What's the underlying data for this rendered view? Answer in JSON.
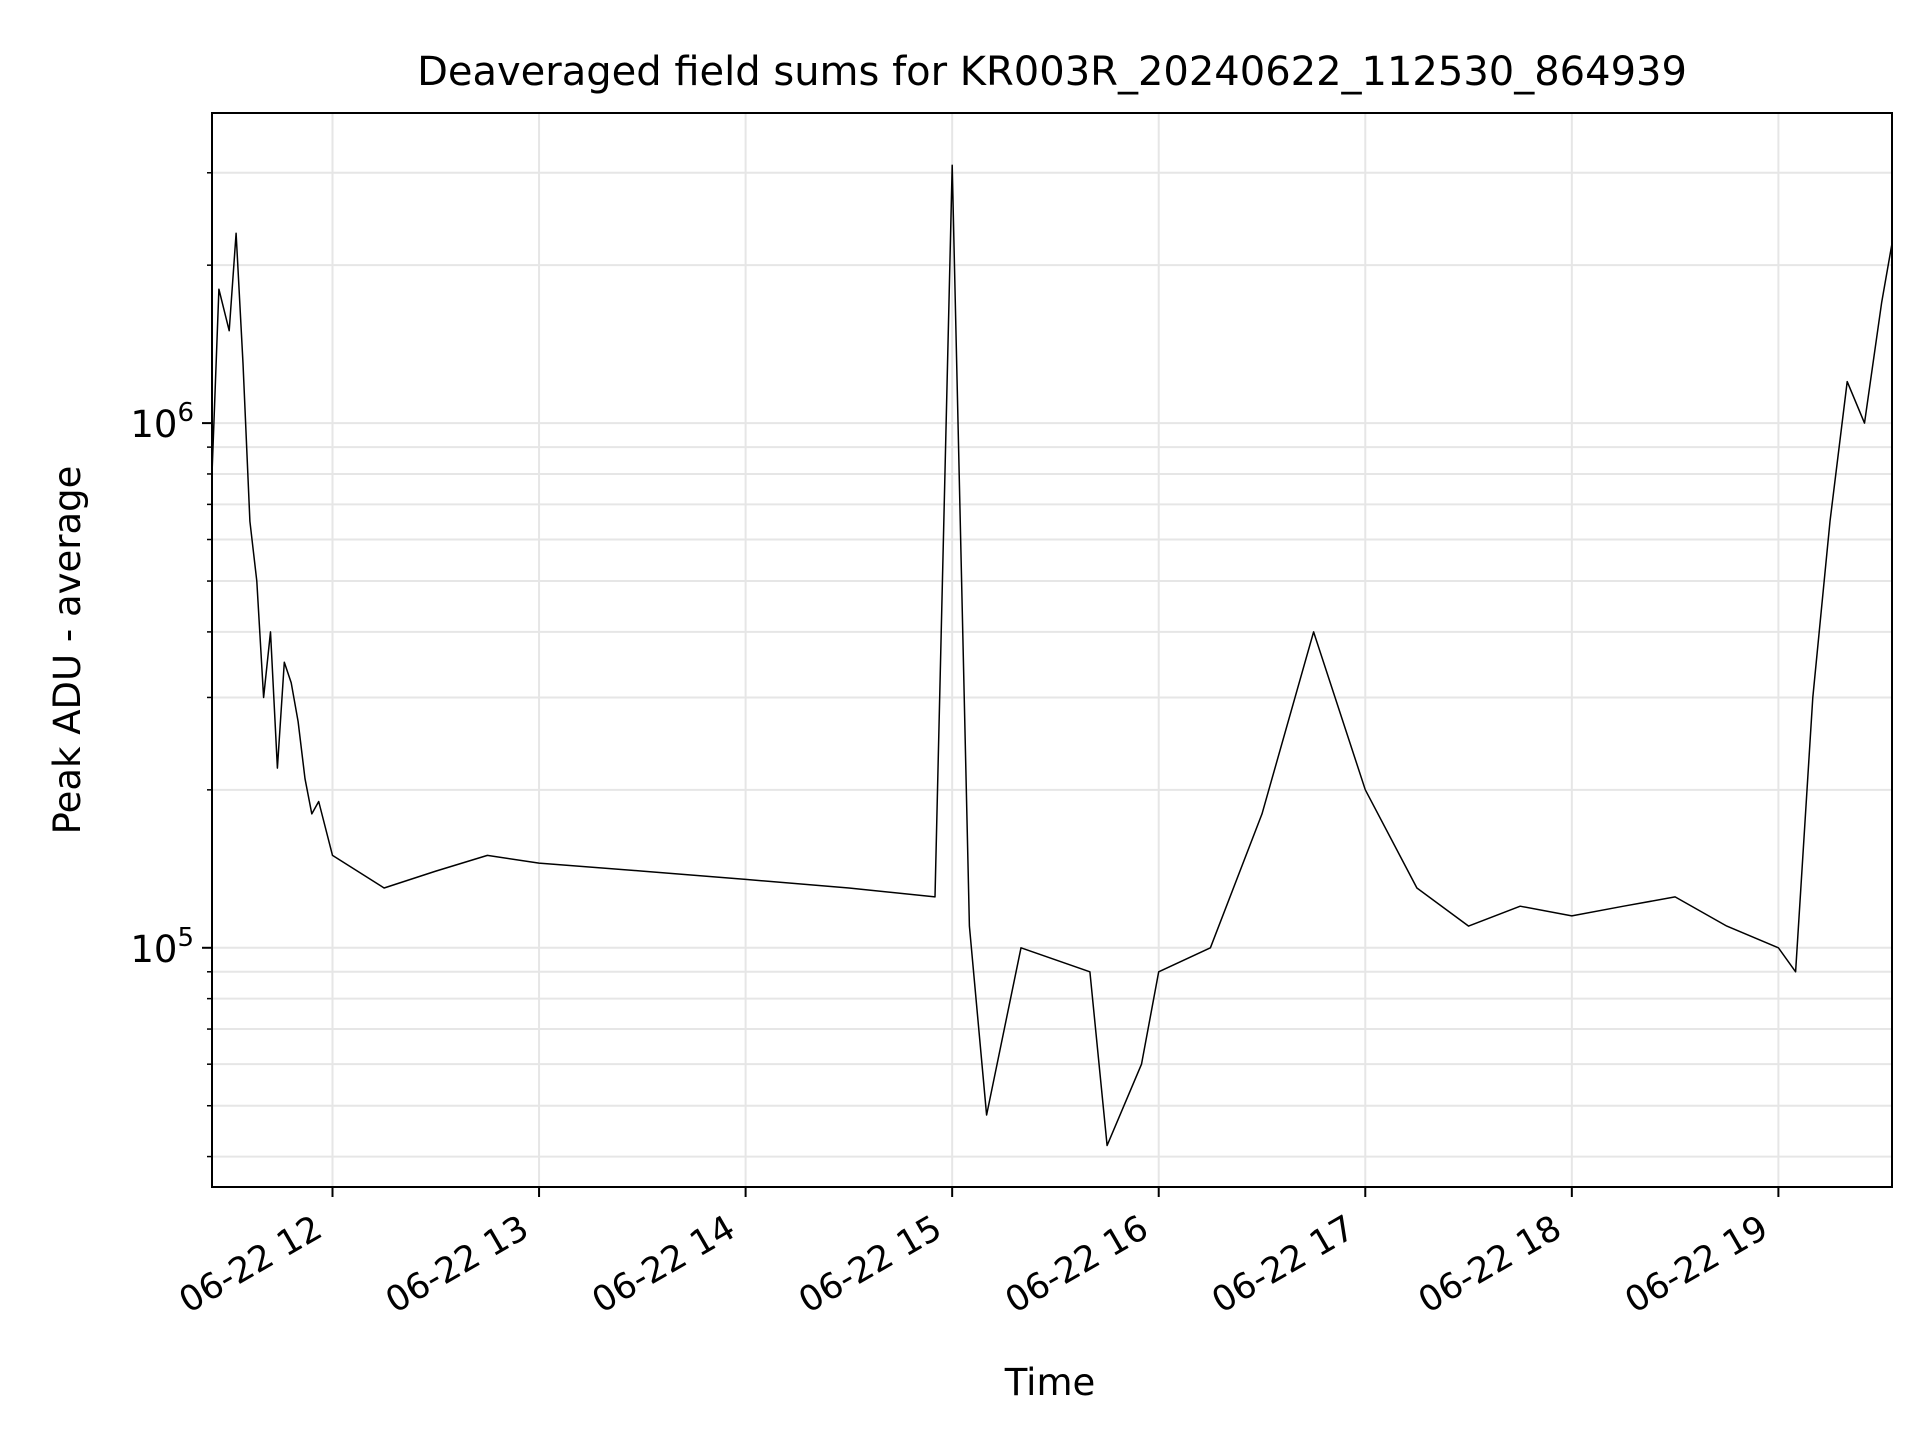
{
  "chart_data": {
    "type": "line",
    "title": "Deaveraged field sums for KR003R_20240622_112530_864939",
    "xlabel": "Time",
    "ylabel": "Peak ADU - average",
    "yscale": "log",
    "xlim": [
      "2024-06-22 11:25",
      "2024-06-22 19:33"
    ],
    "ylim": [
      35000,
      3900000
    ],
    "grid": true,
    "line_color": "#000000",
    "x_ticks": [
      {
        "label": "06-22 12",
        "value": "2024-06-22 12:00"
      },
      {
        "label": "06-22 13",
        "value": "2024-06-22 13:00"
      },
      {
        "label": "06-22 14",
        "value": "2024-06-22 14:00"
      },
      {
        "label": "06-22 15",
        "value": "2024-06-22 15:00"
      },
      {
        "label": "06-22 16",
        "value": "2024-06-22 16:00"
      },
      {
        "label": "06-22 17",
        "value": "2024-06-22 17:00"
      },
      {
        "label": "06-22 18",
        "value": "2024-06-22 18:00"
      },
      {
        "label": "06-22 19",
        "value": "2024-06-22 19:00"
      }
    ],
    "y_ticks": [
      {
        "base": "10",
        "exp": "5",
        "value": 100000
      },
      {
        "base": "10",
        "exp": "6",
        "value": 1000000
      }
    ],
    "series": [
      {
        "points": [
          [
            "2024-06-22 11:25",
            800000
          ],
          [
            "2024-06-22 11:27",
            1800000
          ],
          [
            "2024-06-22 11:30",
            1500000
          ],
          [
            "2024-06-22 11:32",
            2300000
          ],
          [
            "2024-06-22 11:34",
            1300000
          ],
          [
            "2024-06-22 11:36",
            650000
          ],
          [
            "2024-06-22 11:38",
            500000
          ],
          [
            "2024-06-22 11:40",
            300000
          ],
          [
            "2024-06-22 11:42",
            400000
          ],
          [
            "2024-06-22 11:44",
            220000
          ],
          [
            "2024-06-22 11:46",
            350000
          ],
          [
            "2024-06-22 11:48",
            320000
          ],
          [
            "2024-06-22 11:50",
            270000
          ],
          [
            "2024-06-22 11:52",
            210000
          ],
          [
            "2024-06-22 11:54",
            180000
          ],
          [
            "2024-06-22 11:56",
            190000
          ],
          [
            "2024-06-22 12:00",
            150000
          ],
          [
            "2024-06-22 12:15",
            130000
          ],
          [
            "2024-06-22 12:30",
            140000
          ],
          [
            "2024-06-22 12:45",
            150000
          ],
          [
            "2024-06-22 13:00",
            145000
          ],
          [
            "2024-06-22 13:30",
            140000
          ],
          [
            "2024-06-22 14:00",
            135000
          ],
          [
            "2024-06-22 14:30",
            130000
          ],
          [
            "2024-06-22 14:55",
            125000
          ],
          [
            "2024-06-22 15:00",
            3100000
          ],
          [
            "2024-06-22 15:05",
            110000
          ],
          [
            "2024-06-22 15:10",
            48000
          ],
          [
            "2024-06-22 15:20",
            100000
          ],
          [
            "2024-06-22 15:40",
            90000
          ],
          [
            "2024-06-22 15:45",
            42000
          ],
          [
            "2024-06-22 15:55",
            60000
          ],
          [
            "2024-06-22 16:00",
            90000
          ],
          [
            "2024-06-22 16:15",
            100000
          ],
          [
            "2024-06-22 16:30",
            180000
          ],
          [
            "2024-06-22 16:45",
            400000
          ],
          [
            "2024-06-22 17:00",
            200000
          ],
          [
            "2024-06-22 17:15",
            130000
          ],
          [
            "2024-06-22 17:30",
            110000
          ],
          [
            "2024-06-22 17:45",
            120000
          ],
          [
            "2024-06-22 18:00",
            115000
          ],
          [
            "2024-06-22 18:15",
            120000
          ],
          [
            "2024-06-22 18:30",
            125000
          ],
          [
            "2024-06-22 18:45",
            110000
          ],
          [
            "2024-06-22 19:00",
            100000
          ],
          [
            "2024-06-22 19:05",
            90000
          ],
          [
            "2024-06-22 19:10",
            300000
          ],
          [
            "2024-06-22 19:15",
            650000
          ],
          [
            "2024-06-22 19:20",
            1200000
          ],
          [
            "2024-06-22 19:25",
            1000000
          ],
          [
            "2024-06-22 19:30",
            1700000
          ],
          [
            "2024-06-22 19:33",
            2200000
          ]
        ]
      }
    ]
  }
}
